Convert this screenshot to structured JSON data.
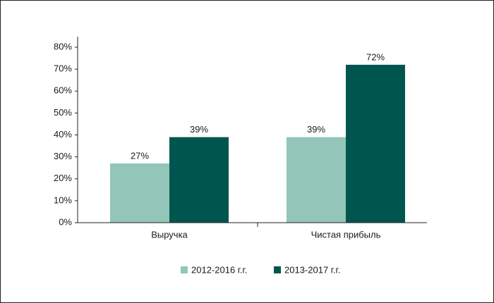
{
  "chart_data": {
    "type": "bar",
    "categories": [
      "Выручка",
      "Чистая прибыль"
    ],
    "series": [
      {
        "name": "2012-2016 г.г.",
        "color": "#93c6b8",
        "values": [
          27,
          39
        ],
        "value_labels": [
          "27%",
          "39%"
        ]
      },
      {
        "name": "2013-2017 г.г.",
        "color": "#00564f",
        "values": [
          39,
          72
        ],
        "value_labels": [
          "39%",
          "72%"
        ]
      }
    ],
    "ylim": [
      0,
      80
    ],
    "yticks": [
      {
        "value": 0,
        "label": "0%"
      },
      {
        "value": 10,
        "label": "10%"
      },
      {
        "value": 20,
        "label": "20%"
      },
      {
        "value": 30,
        "label": "30%"
      },
      {
        "value": 40,
        "label": "40%"
      },
      {
        "value": 50,
        "label": "50%"
      },
      {
        "value": 60,
        "label": "60%"
      },
      {
        "value": 70,
        "label": "70%"
      },
      {
        "value": 80,
        "label": "80%"
      }
    ],
    "grid": false
  }
}
